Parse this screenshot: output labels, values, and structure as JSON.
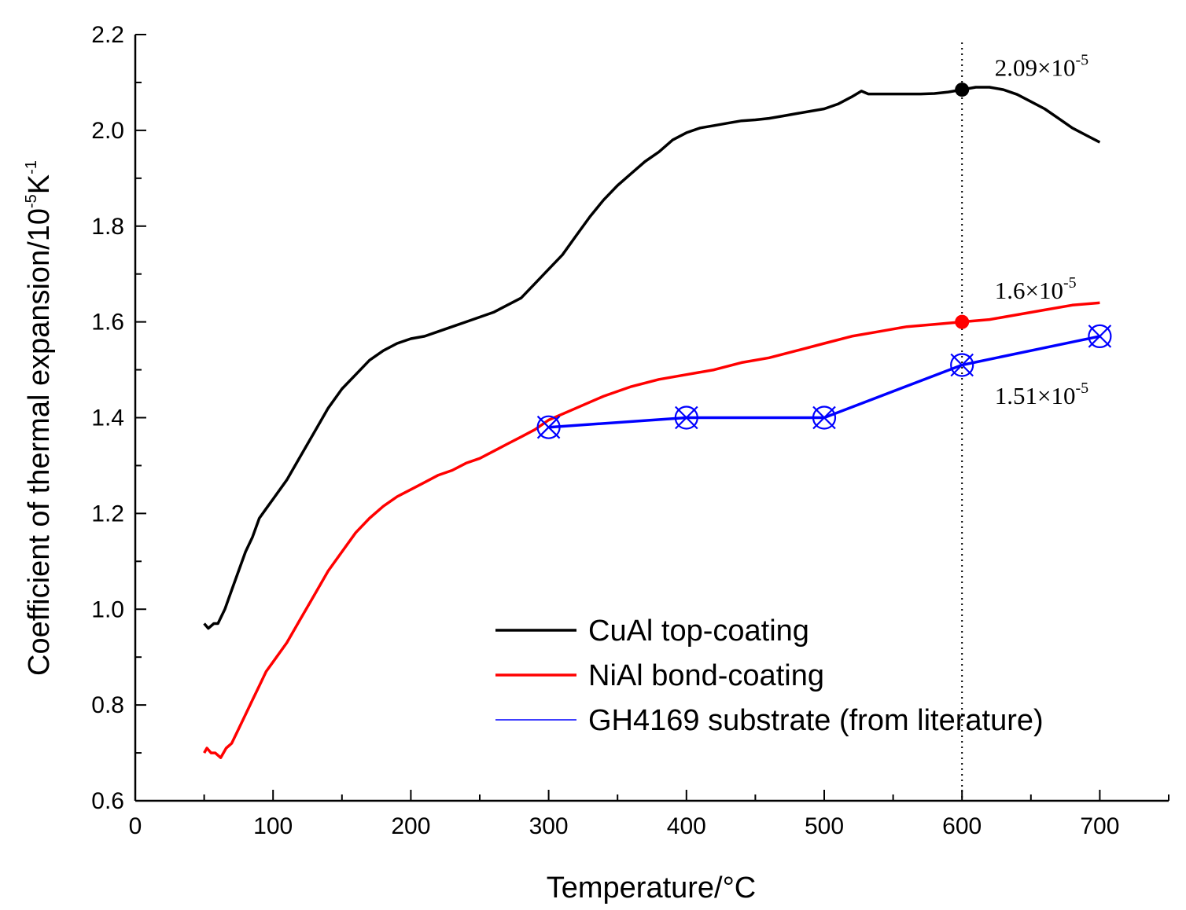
{
  "chart_data": {
    "type": "line",
    "xlabel": "Temperature/°C",
    "ylabel": {
      "base": "Coefficient of thermal expansion/10",
      "exp1": "-5",
      "unit": "K",
      "exp2": "-1"
    },
    "xlim": [
      0,
      750
    ],
    "ylim": [
      0.6,
      2.2
    ],
    "xticks": [
      0,
      100,
      200,
      300,
      400,
      500,
      600,
      700
    ],
    "yticks": [
      "0.6",
      "0.8",
      "1.0",
      "1.2",
      "1.4",
      "1.6",
      "1.8",
      "2.0",
      "2.2"
    ],
    "grid": false,
    "legend_position": "bottom-right",
    "series": [
      {
        "name": "CuAl top-coating",
        "color": "#000000",
        "marker": "none",
        "x": [
          50,
          53,
          57,
          60,
          65,
          70,
          75,
          80,
          85,
          90,
          95,
          100,
          110,
          120,
          130,
          140,
          150,
          160,
          170,
          180,
          190,
          200,
          210,
          220,
          230,
          240,
          250,
          260,
          270,
          280,
          290,
          300,
          310,
          320,
          330,
          340,
          350,
          360,
          370,
          380,
          390,
          400,
          410,
          420,
          430,
          440,
          450,
          460,
          470,
          480,
          490,
          500,
          510,
          520,
          527,
          532,
          540,
          550,
          560,
          570,
          580,
          590,
          600,
          610,
          620,
          630,
          640,
          650,
          660,
          670,
          680,
          690,
          700
        ],
        "y": [
          0.97,
          0.96,
          0.97,
          0.97,
          1.0,
          1.04,
          1.08,
          1.12,
          1.15,
          1.19,
          1.21,
          1.23,
          1.27,
          1.32,
          1.37,
          1.42,
          1.46,
          1.49,
          1.52,
          1.54,
          1.555,
          1.565,
          1.57,
          1.58,
          1.59,
          1.6,
          1.61,
          1.62,
          1.635,
          1.65,
          1.68,
          1.71,
          1.74,
          1.78,
          1.82,
          1.855,
          1.885,
          1.91,
          1.935,
          1.955,
          1.98,
          1.995,
          2.005,
          2.01,
          2.015,
          2.02,
          2.022,
          2.025,
          2.03,
          2.035,
          2.04,
          2.045,
          2.055,
          2.07,
          2.082,
          2.076,
          2.076,
          2.076,
          2.076,
          2.076,
          2.077,
          2.08,
          2.085,
          2.09,
          2.09,
          2.085,
          2.075,
          2.06,
          2.045,
          2.025,
          2.005,
          1.99,
          1.975
        ]
      },
      {
        "name": "NiAl bond-coating",
        "color": "#ff0000",
        "marker": "none",
        "x": [
          50,
          52,
          55,
          58,
          62,
          66,
          70,
          75,
          80,
          85,
          90,
          95,
          100,
          110,
          120,
          130,
          140,
          150,
          160,
          170,
          180,
          190,
          200,
          210,
          220,
          230,
          240,
          250,
          260,
          270,
          280,
          290,
          300,
          320,
          340,
          360,
          380,
          400,
          420,
          440,
          460,
          480,
          500,
          520,
          540,
          560,
          580,
          600,
          620,
          640,
          660,
          680,
          700
        ],
        "y": [
          0.7,
          0.71,
          0.7,
          0.7,
          0.69,
          0.71,
          0.72,
          0.75,
          0.78,
          0.81,
          0.84,
          0.87,
          0.89,
          0.93,
          0.98,
          1.03,
          1.08,
          1.12,
          1.16,
          1.19,
          1.215,
          1.235,
          1.25,
          1.265,
          1.28,
          1.29,
          1.305,
          1.315,
          1.33,
          1.345,
          1.36,
          1.375,
          1.395,
          1.42,
          1.445,
          1.465,
          1.48,
          1.49,
          1.5,
          1.515,
          1.525,
          1.54,
          1.555,
          1.57,
          1.58,
          1.59,
          1.595,
          1.6,
          1.605,
          1.615,
          1.625,
          1.635,
          1.64
        ]
      },
      {
        "name": "GH4169 substrate (from literature)",
        "color": "#0000ff",
        "marker": "circled-x",
        "x": [
          300,
          400,
          500,
          600,
          700
        ],
        "y": [
          1.38,
          1.4,
          1.4,
          1.51,
          1.57
        ]
      }
    ],
    "highlight_points": [
      {
        "x": 600,
        "y": 2.085,
        "color": "#000000"
      },
      {
        "x": 600,
        "y": 1.6,
        "color": "#ff0000"
      }
    ],
    "reference_line_x": 600,
    "annotations": [
      {
        "base": "2.09×10",
        "exp": "-5",
        "x": 610,
        "y": 2.13
      },
      {
        "base": "1.6×10",
        "exp": "-5",
        "x": 610,
        "y": 1.665
      },
      {
        "base": "1.51×10",
        "exp": "-5",
        "x": 610,
        "y": 1.445
      }
    ]
  }
}
